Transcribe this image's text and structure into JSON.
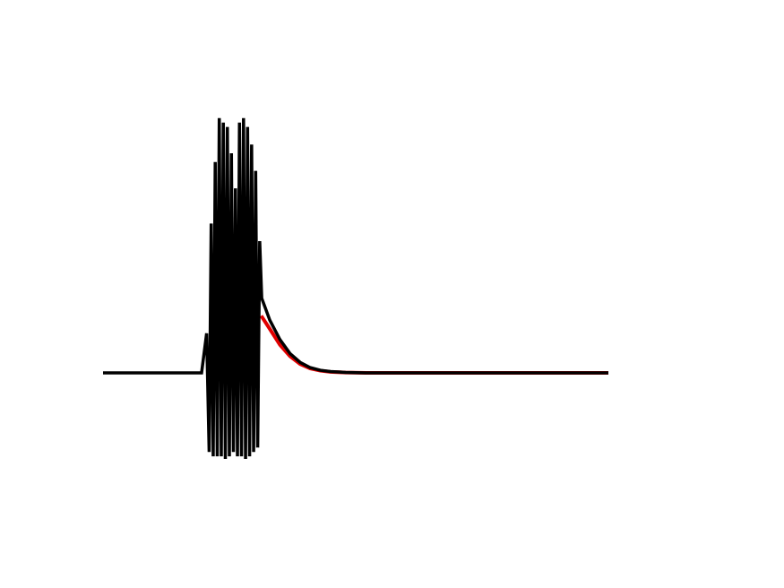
{
  "chart_data": {
    "type": "line",
    "title": "",
    "xlabel": "",
    "ylabel": "",
    "axes_visible": false,
    "grid": false,
    "legend": "none",
    "xlim": [
      0,
      100
    ],
    "ylim": [
      -1.0,
      3.0
    ],
    "series": [
      {
        "role": "signal",
        "color": "#000000",
        "points": [
          [
            0,
            0.0
          ],
          [
            19.5,
            0.0
          ],
          [
            20.5,
            0.45
          ],
          [
            21.0,
            -0.9
          ],
          [
            21.4,
            1.7
          ],
          [
            21.8,
            -0.95
          ],
          [
            22.2,
            2.4
          ],
          [
            22.6,
            -0.95
          ],
          [
            23.0,
            2.9
          ],
          [
            23.4,
            -0.95
          ],
          [
            23.8,
            2.85
          ],
          [
            24.2,
            -0.98
          ],
          [
            24.6,
            2.8
          ],
          [
            25.0,
            -0.95
          ],
          [
            25.4,
            2.5
          ],
          [
            25.8,
            -0.9
          ],
          [
            26.2,
            2.1
          ],
          [
            26.6,
            -0.95
          ],
          [
            27.0,
            2.85
          ],
          [
            27.4,
            -0.95
          ],
          [
            27.8,
            2.9
          ],
          [
            28.2,
            -0.98
          ],
          [
            28.6,
            2.8
          ],
          [
            29.0,
            -0.95
          ],
          [
            29.4,
            2.6
          ],
          [
            29.8,
            -0.9
          ],
          [
            30.2,
            2.3
          ],
          [
            30.6,
            -0.85
          ],
          [
            31.0,
            1.5
          ],
          [
            31.4,
            0.85
          ],
          [
            33.0,
            0.6
          ],
          [
            35.0,
            0.38
          ],
          [
            37.0,
            0.22
          ],
          [
            39.0,
            0.12
          ],
          [
            41.0,
            0.06
          ],
          [
            43.0,
            0.03
          ],
          [
            45.0,
            0.015
          ],
          [
            48.0,
            0.005
          ],
          [
            52.0,
            0.0
          ],
          [
            100.0,
            0.0
          ]
        ]
      },
      {
        "role": "fit",
        "color": "#e00000",
        "points": [
          [
            31.3,
            0.65
          ],
          [
            33.0,
            0.5
          ],
          [
            35.0,
            0.32
          ],
          [
            37.0,
            0.19
          ],
          [
            39.0,
            0.1
          ],
          [
            41.0,
            0.05
          ],
          [
            43.0,
            0.025
          ],
          [
            45.0,
            0.012
          ],
          [
            48.0,
            0.004
          ],
          [
            52.0,
            0.0
          ],
          [
            100.0,
            0.0
          ]
        ]
      }
    ]
  }
}
